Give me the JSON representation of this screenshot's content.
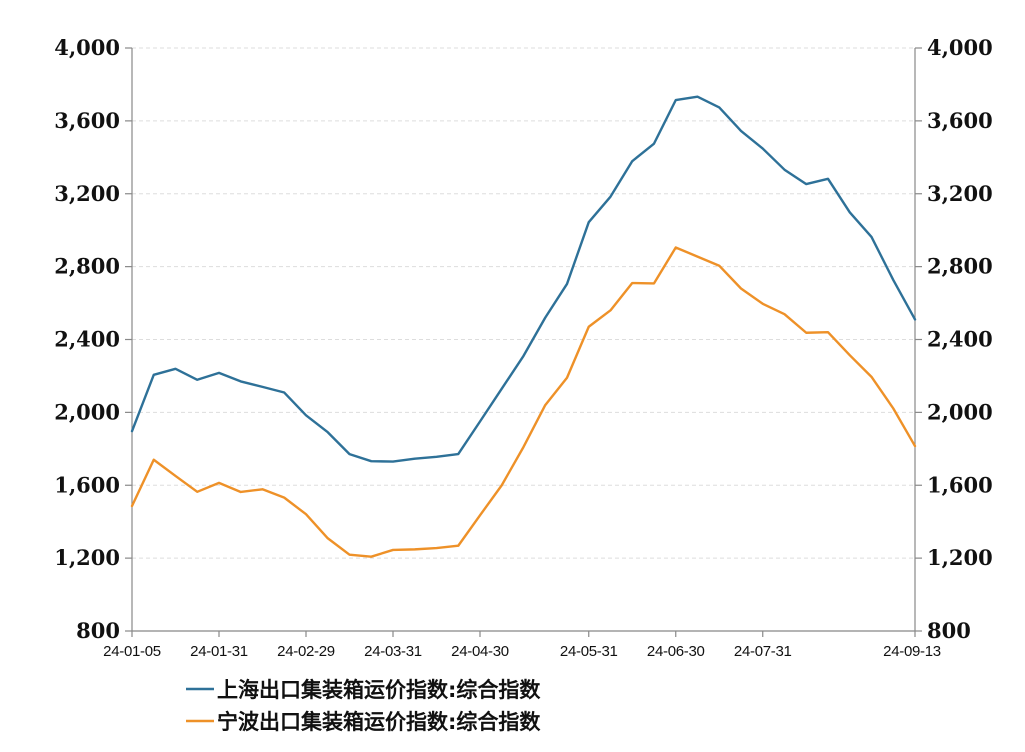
{
  "chart_data": {
    "type": "line",
    "title": "",
    "xlabel": "",
    "ylabel": "",
    "ylim": [
      800,
      4000
    ],
    "y_ticks": [
      "800",
      "1,200",
      "1,600",
      "2,000",
      "2,400",
      "2,800",
      "3,200",
      "3,600",
      "4,000"
    ],
    "y_tick_values": [
      800,
      1200,
      1600,
      2000,
      2400,
      2800,
      3200,
      3600,
      4000
    ],
    "x_tick_labels": [
      {
        "label": "24-01-05",
        "index": 0
      },
      {
        "label": "24-01-31",
        "index": 4
      },
      {
        "label": "24-02-29",
        "index": 8
      },
      {
        "label": "24-03-31",
        "index": 12
      },
      {
        "label": "24-04-30",
        "index": 16
      },
      {
        "label": "24-05-31",
        "index": 21
      },
      {
        "label": "24-06-30",
        "index": 25
      },
      {
        "label": "24-07-31",
        "index": 29
      },
      {
        "label": "24-09-13",
        "index": 36
      }
    ],
    "grid": true,
    "legend_position": "bottom-left",
    "series": [
      {
        "name": "上海出口集装箱运价指数:综合指数",
        "color": "#2e7198",
        "values": [
          1897,
          2206,
          2239,
          2179,
          2217,
          2170,
          2140,
          2109,
          1984,
          1891,
          1771,
          1732,
          1730,
          1746,
          1756,
          1771,
          1950,
          2130,
          2310,
          2520,
          2705,
          3044,
          3184,
          3379,
          3475,
          3714,
          3733,
          3674,
          3545,
          3448,
          3332,
          3253,
          3282,
          3098,
          2963,
          2727,
          2510
        ]
      },
      {
        "name": "宁波出口集装箱运价指数:综合指数",
        "color": "#ee9128",
        "values": [
          1486,
          1740,
          1651,
          1564,
          1613,
          1563,
          1578,
          1532,
          1441,
          1309,
          1219,
          1208,
          1245,
          1248,
          1255,
          1268,
          1435,
          1600,
          1810,
          2040,
          2190,
          2470,
          2560,
          2710,
          2708,
          2905,
          2855,
          2805,
          2680,
          2596,
          2539,
          2437,
          2440,
          2314,
          2195,
          2022,
          1815
        ]
      }
    ]
  }
}
